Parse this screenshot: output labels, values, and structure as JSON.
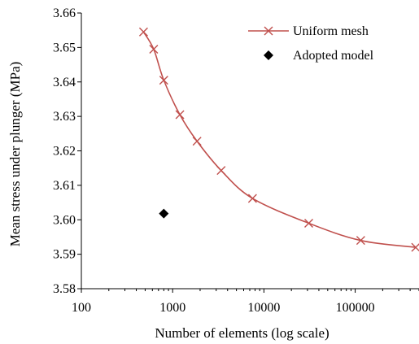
{
  "chart_data": {
    "type": "scatter",
    "xlabel": "Number of elements (log scale)",
    "ylabel": "Mean stress under plunger (MPa)",
    "xscale": "log",
    "xlim": [
      100,
      500000
    ],
    "ylim": [
      3.58,
      3.66
    ],
    "xticks": [
      "100",
      "1000",
      "10000",
      "100000"
    ],
    "xtick_values": [
      100,
      1000,
      10000,
      100000
    ],
    "yticks": [
      "3.58",
      "3.59",
      "3.60",
      "3.61",
      "3.62",
      "3.63",
      "3.64",
      "3.65",
      "3.66"
    ],
    "ytick_values": [
      3.58,
      3.59,
      3.6,
      3.61,
      3.62,
      3.63,
      3.64,
      3.65,
      3.66
    ],
    "grid": false,
    "legend_position": "top-right",
    "series": [
      {
        "name": "Uniform mesh",
        "style": "line-with-x-markers",
        "color": "#C0504D",
        "x": [
          480,
          620,
          800,
          1200,
          1850,
          3400,
          7500,
          31000,
          115000,
          460000
        ],
        "y": [
          3.6545,
          3.6495,
          3.6405,
          3.6305,
          3.6228,
          3.6143,
          3.6062,
          3.599,
          3.594,
          3.592
        ]
      },
      {
        "name": "Adopted model",
        "style": "diamond-marker",
        "color": "#000000",
        "x": [
          800
        ],
        "y": [
          3.6018
        ]
      }
    ]
  }
}
